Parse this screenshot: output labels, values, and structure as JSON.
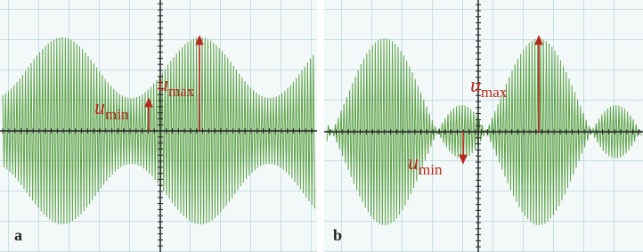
{
  "panels": [
    {
      "label": "a",
      "annotations": [
        {
          "symbol": "u",
          "subscript": "max"
        },
        {
          "symbol": "u",
          "subscript": "min"
        }
      ]
    },
    {
      "label": "b",
      "annotations": [
        {
          "symbol": "u",
          "subscript": "max"
        },
        {
          "symbol": "u",
          "subscript": "min"
        }
      ]
    }
  ]
}
